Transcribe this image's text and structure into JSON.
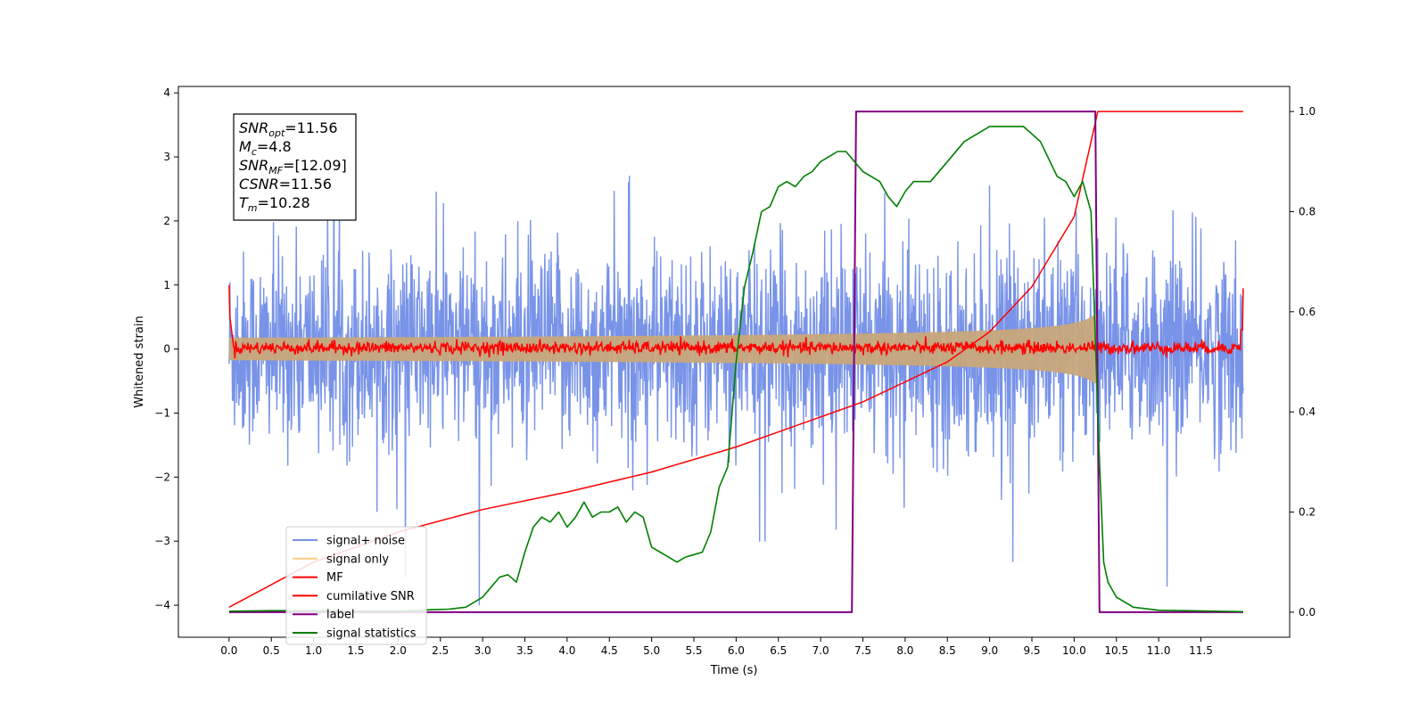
{
  "chart_data": {
    "type": "line",
    "xlabel": "Time (s)",
    "ylabel": "Whitened strain",
    "xlim": [
      -0.6,
      12.55
    ],
    "ylim_left": [
      -4.5,
      4.1
    ],
    "ylim_right": [
      -0.05,
      1.05
    ],
    "x_ticks": [
      0.0,
      0.5,
      1.0,
      1.5,
      2.0,
      2.5,
      3.0,
      3.5,
      4.0,
      4.5,
      5.0,
      5.5,
      6.0,
      6.5,
      7.0,
      7.5,
      8.0,
      8.5,
      9.0,
      9.5,
      10.0,
      10.5,
      11.0,
      11.5
    ],
    "x_tick_labels": [
      "0.0",
      "0.5",
      "1.0",
      "1.5",
      "2.0",
      "2.5",
      "3.0",
      "3.5",
      "4.0",
      "4.5",
      "5.0",
      "5.5",
      "6.0",
      "6.5",
      "7.0",
      "7.5",
      "8.0",
      "8.5",
      "9.0",
      "9.5",
      "10.0",
      "10.5",
      "11.0",
      "11.5"
    ],
    "y_ticks_left": [
      4,
      3,
      2,
      1,
      0,
      -1,
      -2,
      -3,
      -4
    ],
    "y_tick_labels_left": [
      "4",
      "3",
      "2",
      "1",
      "0",
      "−1",
      "−2",
      "−3",
      "−4"
    ],
    "y_ticks_right": [
      1.0,
      0.8,
      0.6,
      0.4,
      0.2,
      0.0
    ],
    "y_tick_labels_right": [
      "1.0",
      "0.8",
      "0.6",
      "0.4",
      "0.2",
      "0.0"
    ],
    "grid": false,
    "legend_position": "lower-left",
    "annotation_box": [
      {
        "base": "SNR",
        "sub": "opt",
        "value": "=11.56"
      },
      {
        "base": "M",
        "sub": "c",
        "value": "=4.8"
      },
      {
        "base": "SNR",
        "sub": "MF",
        "value": "=[12.09]"
      },
      {
        "base": "CSNR",
        "sub": "",
        "value": "=11.56"
      },
      {
        "base": "T",
        "sub": "m",
        "value": "=10.28"
      }
    ],
    "series": [
      {
        "name": "signal+ noise",
        "color": "#7893e8",
        "axis": "left",
        "style": "noise",
        "envelope": [
          -1.6,
          1.6
        ],
        "time_range": [
          0.0,
          12.0
        ]
      },
      {
        "name": "signal only",
        "color": "#c8a77a",
        "axis": "left",
        "style": "chirp",
        "time_range": [
          0.0,
          10.28
        ],
        "amplitude_end": 0.55
      },
      {
        "name": "MF",
        "color": "#ff0000",
        "axis": "left",
        "style": "mf",
        "envelope": [
          -0.12,
          0.14
        ]
      },
      {
        "name": "cumilative SNR",
        "color": "#ff0000",
        "axis": "right",
        "points": [
          [
            0.0,
            0.01
          ],
          [
            1.0,
            0.1
          ],
          [
            2.0,
            0.16
          ],
          [
            3.0,
            0.205
          ],
          [
            4.0,
            0.24
          ],
          [
            5.0,
            0.28
          ],
          [
            6.0,
            0.33
          ],
          [
            7.0,
            0.39
          ],
          [
            7.5,
            0.42
          ],
          [
            8.0,
            0.46
          ],
          [
            8.5,
            0.5
          ],
          [
            9.0,
            0.56
          ],
          [
            9.5,
            0.65
          ],
          [
            10.0,
            0.79
          ],
          [
            10.28,
            1.0
          ],
          [
            12.0,
            1.0
          ]
        ]
      },
      {
        "name": "label",
        "color": "#800080",
        "axis": "right",
        "points": [
          [
            0.0,
            0.0
          ],
          [
            7.37,
            0.0
          ],
          [
            7.42,
            1.0
          ],
          [
            10.25,
            1.0
          ],
          [
            10.3,
            0.0
          ],
          [
            12.0,
            0.0
          ]
        ]
      },
      {
        "name": "signal statistics",
        "color": "#008000",
        "axis": "right",
        "points": [
          [
            0.0,
            0.002
          ],
          [
            0.5,
            0.003
          ],
          [
            1.0,
            0.003
          ],
          [
            1.5,
            0.002
          ],
          [
            2.0,
            0.002
          ],
          [
            2.4,
            0.005
          ],
          [
            2.6,
            0.006
          ],
          [
            2.8,
            0.01
          ],
          [
            3.0,
            0.03
          ],
          [
            3.1,
            0.05
          ],
          [
            3.2,
            0.07
          ],
          [
            3.3,
            0.075
          ],
          [
            3.4,
            0.06
          ],
          [
            3.5,
            0.12
          ],
          [
            3.6,
            0.17
          ],
          [
            3.7,
            0.19
          ],
          [
            3.8,
            0.18
          ],
          [
            3.9,
            0.2
          ],
          [
            4.0,
            0.17
          ],
          [
            4.1,
            0.19
          ],
          [
            4.2,
            0.22
          ],
          [
            4.3,
            0.19
          ],
          [
            4.4,
            0.2
          ],
          [
            4.5,
            0.2
          ],
          [
            4.6,
            0.21
          ],
          [
            4.7,
            0.18
          ],
          [
            4.8,
            0.2
          ],
          [
            4.9,
            0.19
          ],
          [
            5.0,
            0.13
          ],
          [
            5.1,
            0.12
          ],
          [
            5.2,
            0.11
          ],
          [
            5.3,
            0.1
          ],
          [
            5.4,
            0.11
          ],
          [
            5.5,
            0.115
          ],
          [
            5.6,
            0.12
          ],
          [
            5.7,
            0.16
          ],
          [
            5.8,
            0.25
          ],
          [
            5.9,
            0.29
          ],
          [
            6.0,
            0.5
          ],
          [
            6.1,
            0.65
          ],
          [
            6.2,
            0.72
          ],
          [
            6.3,
            0.8
          ],
          [
            6.4,
            0.81
          ],
          [
            6.5,
            0.85
          ],
          [
            6.6,
            0.86
          ],
          [
            6.7,
            0.85
          ],
          [
            6.8,
            0.87
          ],
          [
            6.9,
            0.88
          ],
          [
            7.0,
            0.9
          ],
          [
            7.1,
            0.91
          ],
          [
            7.2,
            0.92
          ],
          [
            7.3,
            0.92
          ],
          [
            7.4,
            0.9
          ],
          [
            7.5,
            0.88
          ],
          [
            7.6,
            0.87
          ],
          [
            7.7,
            0.86
          ],
          [
            7.8,
            0.83
          ],
          [
            7.9,
            0.81
          ],
          [
            8.0,
            0.84
          ],
          [
            8.1,
            0.86
          ],
          [
            8.3,
            0.86
          ],
          [
            8.5,
            0.9
          ],
          [
            8.7,
            0.94
          ],
          [
            9.0,
            0.97
          ],
          [
            9.2,
            0.97
          ],
          [
            9.4,
            0.97
          ],
          [
            9.6,
            0.94
          ],
          [
            9.8,
            0.87
          ],
          [
            9.9,
            0.86
          ],
          [
            10.0,
            0.83
          ],
          [
            10.1,
            0.86
          ],
          [
            10.2,
            0.8
          ],
          [
            10.3,
            0.3
          ],
          [
            10.35,
            0.1
          ],
          [
            10.4,
            0.06
          ],
          [
            10.5,
            0.03
          ],
          [
            10.7,
            0.01
          ],
          [
            11.0,
            0.004
          ],
          [
            12.0,
            0.001
          ]
        ]
      }
    ]
  }
}
